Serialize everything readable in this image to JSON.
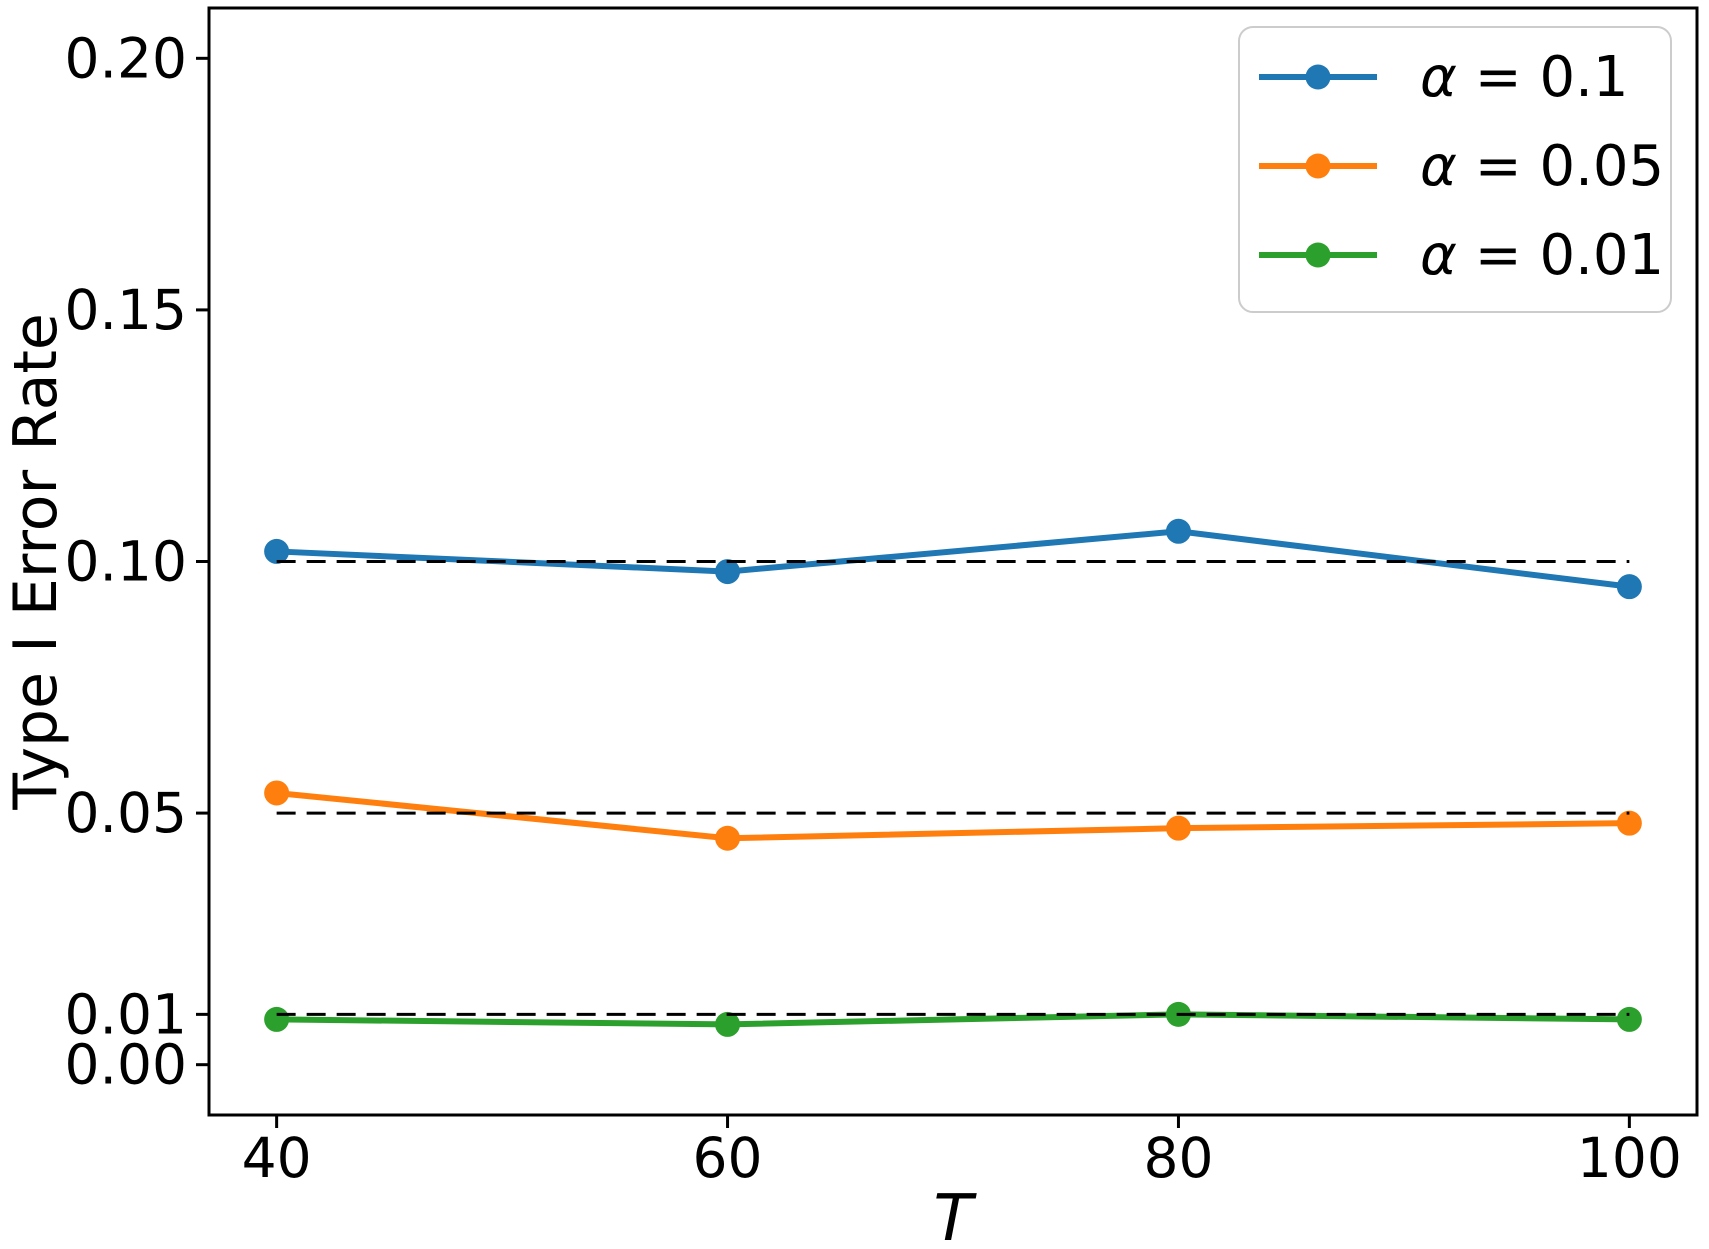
{
  "figure": {
    "background": "#ffffff",
    "axis_color": "#000000"
  },
  "chart_data": {
    "type": "line",
    "title": "",
    "xlabel": "T",
    "ylabel": "Type I Error Rate",
    "x": [
      40,
      60,
      80,
      100
    ],
    "xtick_labels": [
      "40",
      "60",
      "80",
      "100"
    ],
    "yticks": [
      0.0,
      0.01,
      0.05,
      0.1,
      0.15,
      0.2
    ],
    "ytick_labels": [
      "0.00",
      "0.01",
      "0.05",
      "0.10",
      "0.15",
      "0.20"
    ],
    "xlim": [
      37,
      103
    ],
    "ylim": [
      -0.01,
      0.21
    ],
    "grid": false,
    "legend_position": "upper right",
    "series": [
      {
        "label": "α = 0.1",
        "label_symbol": "α",
        "label_rest": " = 0.1",
        "color": "#1f77b4",
        "values": [
          0.102,
          0.098,
          0.106,
          0.095
        ],
        "reference_level": 0.1
      },
      {
        "label": "α = 0.05",
        "label_symbol": "α",
        "label_rest": " = 0.05",
        "color": "#ff7f0e",
        "values": [
          0.054,
          0.045,
          0.047,
          0.048
        ],
        "reference_level": 0.05
      },
      {
        "label": "α = 0.01",
        "label_symbol": "α",
        "label_rest": " = 0.01",
        "color": "#2ca02c",
        "values": [
          0.009,
          0.008,
          0.01,
          0.009
        ],
        "reference_level": 0.01
      }
    ],
    "reference_line_style": "dashed",
    "reference_line_color": "#000000",
    "legend_border_color": "#cccccc"
  }
}
